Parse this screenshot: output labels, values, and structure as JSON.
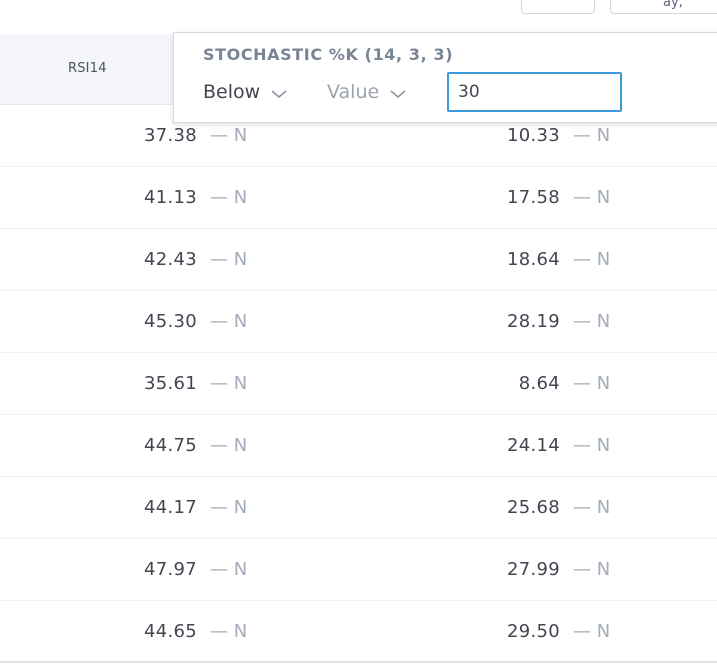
{
  "top_buttons": {
    "partial_label": "ay,"
  },
  "table": {
    "column_header": "RSI14",
    "flag_text": "— N",
    "rows": [
      {
        "rsi": "37.38",
        "stoch": "10.33"
      },
      {
        "rsi": "41.13",
        "stoch": "17.58"
      },
      {
        "rsi": "42.43",
        "stoch": "18.64"
      },
      {
        "rsi": "45.30",
        "stoch": "28.19"
      },
      {
        "rsi": "35.61",
        "stoch": "8.64"
      },
      {
        "rsi": "44.75",
        "stoch": "24.14"
      },
      {
        "rsi": "44.17",
        "stoch": "25.68"
      },
      {
        "rsi": "47.97",
        "stoch": "27.99"
      },
      {
        "rsi": "44.65",
        "stoch": "29.50"
      }
    ]
  },
  "filter_popup": {
    "title": "STOCHASTIC %K (14, 3, 3)",
    "condition": "Below",
    "type": "Value",
    "input_value": "30"
  },
  "icons": {
    "dropdown": "chevron-down-icon"
  },
  "colors": {
    "input_border": "#3a9bd9",
    "header_bg": "#f4f6f9",
    "flag_color": "#a3acb9"
  }
}
